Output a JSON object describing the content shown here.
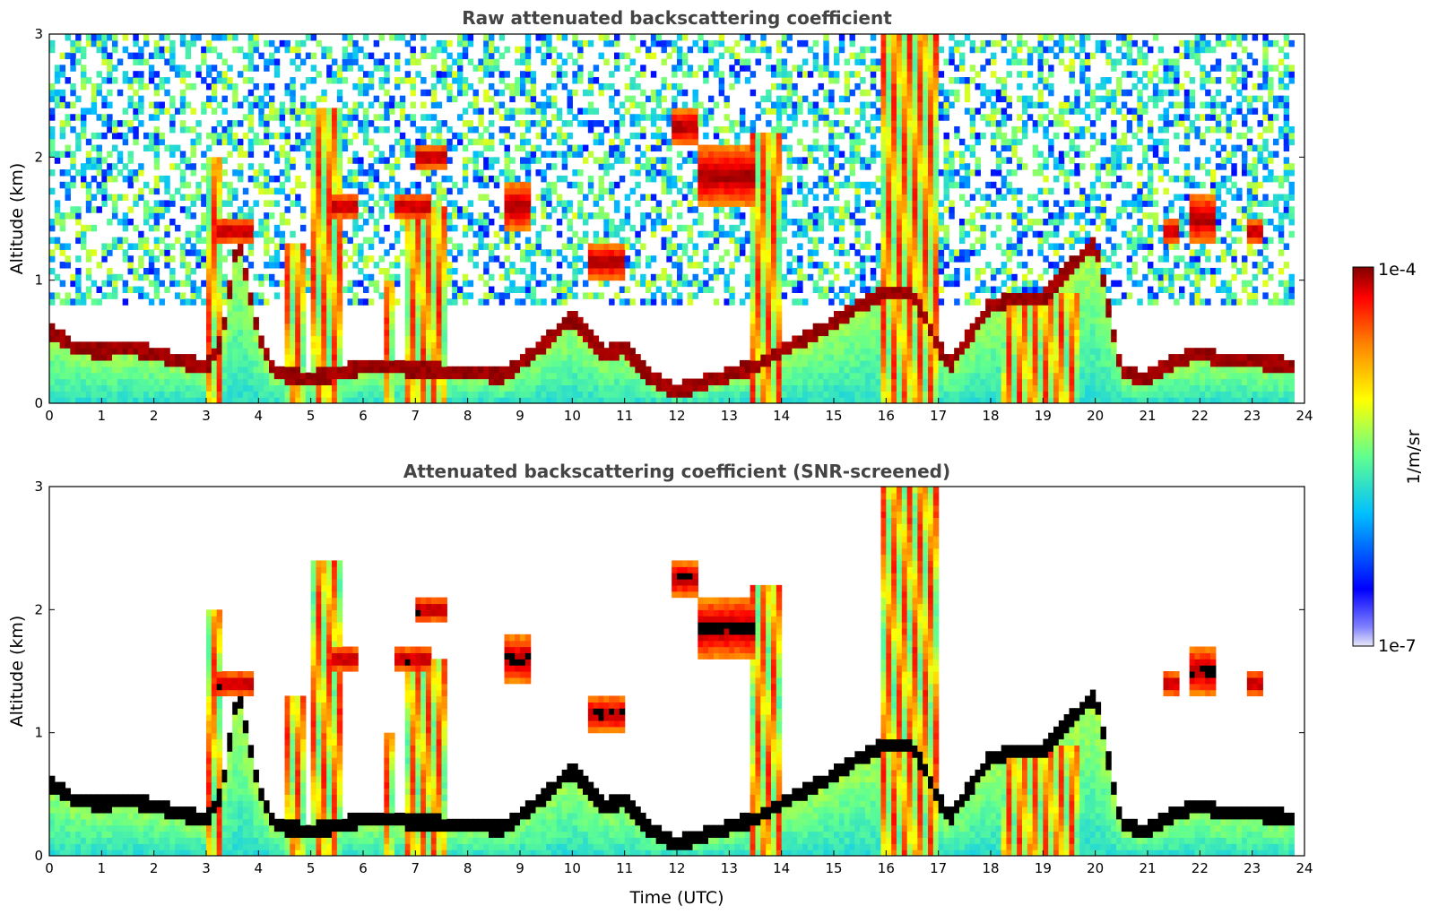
{
  "chart_data": [
    {
      "type": "heatmap",
      "title": "Raw attenuated backscattering coefficient",
      "xlabel": "",
      "ylabel": "Altitude (km)",
      "xlim": [
        0,
        24
      ],
      "ylim": [
        0,
        3
      ],
      "x_ticks": [
        "0",
        "1",
        "2",
        "3",
        "4",
        "5",
        "6",
        "7",
        "8",
        "9",
        "10",
        "11",
        "12",
        "13",
        "14",
        "15",
        "16",
        "17",
        "18",
        "19",
        "20",
        "21",
        "22",
        "23",
        "24"
      ],
      "y_ticks": [
        "0",
        "1",
        "2",
        "3"
      ],
      "noise_background": true,
      "grid": false
    },
    {
      "type": "heatmap",
      "title": "Attenuated backscattering coefficient (SNR-screened)",
      "xlabel": "Time (UTC)",
      "ylabel": "Altitude (km)",
      "xlim": [
        0,
        24
      ],
      "ylim": [
        0,
        3
      ],
      "x_ticks": [
        "0",
        "1",
        "2",
        "3",
        "4",
        "5",
        "6",
        "7",
        "8",
        "9",
        "10",
        "11",
        "12",
        "13",
        "14",
        "15",
        "16",
        "17",
        "18",
        "19",
        "20",
        "21",
        "22",
        "23",
        "24"
      ],
      "y_ticks": [
        "0",
        "1",
        "2",
        "3"
      ],
      "noise_background": false,
      "grid": false
    }
  ],
  "colorbar": {
    "label": "1/m/sr",
    "max_label": "1e-4",
    "min_label": "1e-7",
    "scale": "log",
    "range": [
      1e-07,
      0.0001
    ],
    "colormap": [
      "#e8e8f8",
      "#0000ff",
      "#00c0ff",
      "#60ff90",
      "#ffff00",
      "#ff8000",
      "#ff0000",
      "#800000"
    ]
  },
  "scene": {
    "boundary_layer": [
      [
        0,
        0.6
      ],
      [
        0.5,
        0.45
      ],
      [
        1,
        0.42
      ],
      [
        1.5,
        0.45
      ],
      [
        2,
        0.4
      ],
      [
        2.5,
        0.35
      ],
      [
        3,
        0.3
      ],
      [
        3.3,
        0.5
      ],
      [
        3.6,
        1.35
      ],
      [
        4.0,
        0.55
      ],
      [
        4.3,
        0.25
      ],
      [
        5,
        0.2
      ],
      [
        6,
        0.3
      ],
      [
        7,
        0.28
      ],
      [
        8,
        0.25
      ],
      [
        8.7,
        0.22
      ],
      [
        9.5,
        0.5
      ],
      [
        10,
        0.7
      ],
      [
        10.6,
        0.4
      ],
      [
        11,
        0.45
      ],
      [
        11.5,
        0.2
      ],
      [
        12,
        0.1
      ],
      [
        13.5,
        0.3
      ],
      [
        14.3,
        0.5
      ],
      [
        14.8,
        0.6
      ],
      [
        15.5,
        0.8
      ],
      [
        16,
        0.9
      ],
      [
        16.5,
        0.9
      ],
      [
        17.2,
        0.3
      ],
      [
        18,
        0.8
      ],
      [
        18.5,
        0.85
      ],
      [
        19,
        0.85
      ],
      [
        19.5,
        1.1
      ],
      [
        20,
        1.3
      ],
      [
        20.5,
        0.25
      ],
      [
        21,
        0.2
      ],
      [
        21.5,
        0.35
      ],
      [
        22,
        0.4
      ],
      [
        22.5,
        0.35
      ],
      [
        23,
        0.35
      ],
      [
        23.8,
        0.3
      ]
    ],
    "cloud_layers": [
      {
        "x": [
          3.2,
          3.9
        ],
        "base": 1.3,
        "top": 1.5
      },
      {
        "x": [
          5.4,
          5.9
        ],
        "base": 1.5,
        "top": 1.7
      },
      {
        "x": [
          6.6,
          7.3
        ],
        "base": 1.5,
        "top": 1.7
      },
      {
        "x": [
          7.0,
          7.6
        ],
        "base": 1.9,
        "top": 2.1
      },
      {
        "x": [
          8.7,
          9.2
        ],
        "base": 1.4,
        "top": 1.8
      },
      {
        "x": [
          10.3,
          11.0
        ],
        "base": 1.0,
        "top": 1.3
      },
      {
        "x": [
          11.9,
          12.4
        ],
        "base": 2.1,
        "top": 2.4
      },
      {
        "x": [
          12.4,
          13.5
        ],
        "base": 1.6,
        "top": 2.1
      },
      {
        "x": [
          21.3,
          21.6
        ],
        "base": 1.3,
        "top": 1.5
      },
      {
        "x": [
          21.8,
          22.3
        ],
        "base": 1.3,
        "top": 1.7
      },
      {
        "x": [
          22.9,
          23.2
        ],
        "base": 1.3,
        "top": 1.5
      }
    ],
    "precipitation_columns": [
      {
        "x": [
          3.05,
          3.25
        ],
        "top": 2.0
      },
      {
        "x": [
          4.5,
          4.9
        ],
        "top": 1.3
      },
      {
        "x": [
          5.0,
          5.6
        ],
        "top": 2.4
      },
      {
        "x": [
          6.4,
          6.6
        ],
        "top": 1.0
      },
      {
        "x": [
          6.8,
          7.6
        ],
        "top": 1.6
      },
      {
        "x": [
          13.4,
          14.0
        ],
        "top": 2.2
      },
      {
        "x": [
          15.9,
          17.0
        ],
        "top": 3.0
      },
      {
        "x": [
          18.2,
          19.7
        ],
        "top": 0.9
      }
    ]
  }
}
